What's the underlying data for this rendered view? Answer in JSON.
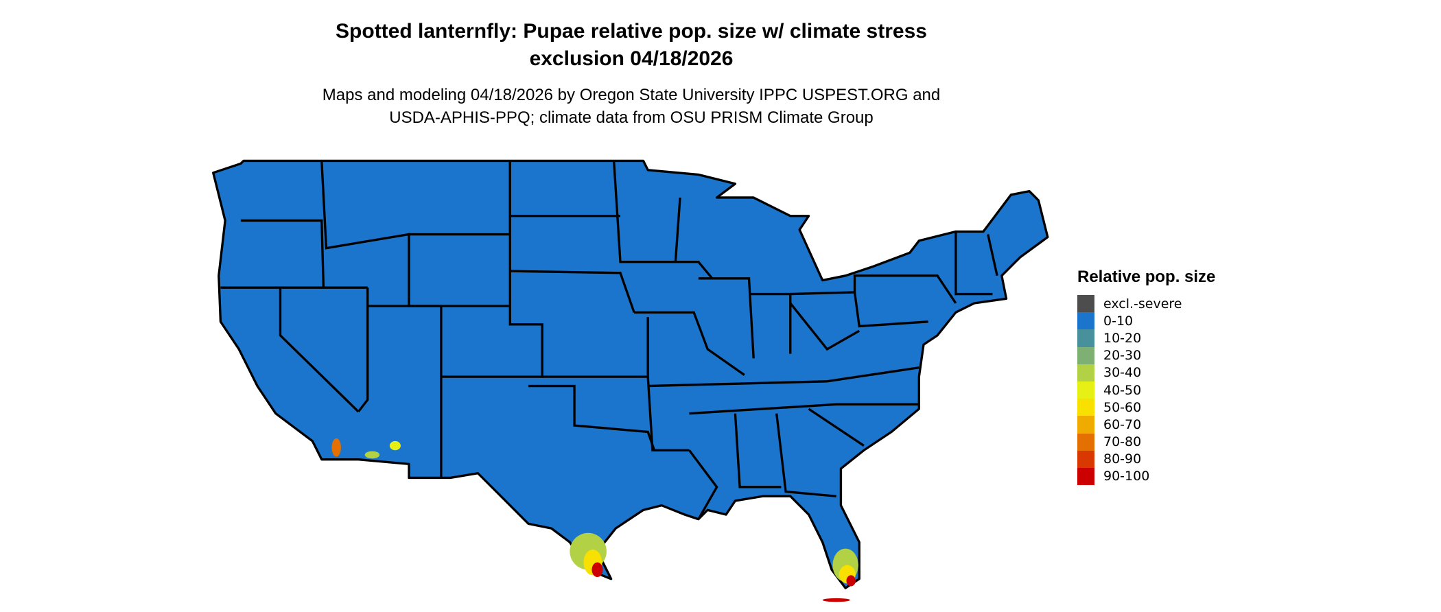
{
  "title_line1": "Spotted lanternfly: Pupae relative pop. size w/ climate stress",
  "title_line2": "exclusion 04/18/2026",
  "subtitle_line1": "Maps and modeling 04/18/2026 by Oregon State University IPPC USPEST.ORG and",
  "subtitle_line2": "USDA-APHIS-PPQ; climate data from OSU PRISM Climate Group",
  "legend": {
    "title": "Relative pop. size",
    "items": [
      {
        "label": "excl.-severe",
        "color": "#4d4d4d"
      },
      {
        "label": "0-10",
        "color": "#1b75cc"
      },
      {
        "label": "10-20",
        "color": "#48919c"
      },
      {
        "label": "20-30",
        "color": "#7db072"
      },
      {
        "label": "30-40",
        "color": "#b2d145"
      },
      {
        "label": "40-50",
        "color": "#e6f014"
      },
      {
        "label": "50-60",
        "color": "#f8e000"
      },
      {
        "label": "60-70",
        "color": "#efab00"
      },
      {
        "label": "70-80",
        "color": "#e37000"
      },
      {
        "label": "80-90",
        "color": "#d93800"
      },
      {
        "label": "90-100",
        "color": "#cc0000"
      }
    ]
  },
  "map": {
    "base_color": "#1b75cc",
    "border_color": "#000000",
    "hotspots": [
      "southern Texas",
      "southern Florida",
      "southern California",
      "southwestern Arizona"
    ]
  }
}
